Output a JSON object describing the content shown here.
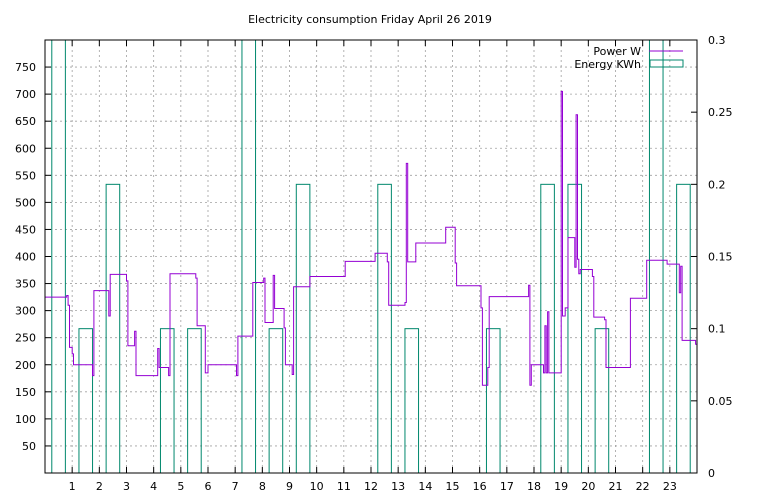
{
  "chart_data": {
    "type": "line",
    "title": "Electricity consumption Friday April 26 2019",
    "grid": true,
    "legend_placement": "top-right",
    "x_axis": {
      "range": [
        0,
        24
      ],
      "ticks": [
        "1",
        "2",
        "3",
        "4",
        "5",
        "6",
        "7",
        "8",
        "9",
        "10",
        "11",
        "12",
        "13",
        "14",
        "15",
        "16",
        "17",
        "18",
        "19",
        "20",
        "21",
        "22",
        "23"
      ]
    },
    "y_axis": {
      "range": [
        0,
        800
      ],
      "ticks": [
        "50",
        "100",
        "150",
        "200",
        "250",
        "300",
        "350",
        "400",
        "450",
        "500",
        "550",
        "600",
        "650",
        "700",
        "750"
      ]
    },
    "y2_axis": {
      "range": [
        0,
        0.3
      ],
      "ticks": [
        "0",
        "0.05",
        "0.1",
        "0.15",
        "0.2",
        "0.25",
        "0.3"
      ]
    },
    "series": [
      {
        "name": "Power W",
        "axis": "y",
        "style": "step-line",
        "color": "#9400d3",
        "points": [
          [
            0,
            325
          ],
          [
            0.8,
            328
          ],
          [
            0.85,
            310
          ],
          [
            0.9,
            232
          ],
          [
            1.0,
            220
          ],
          [
            1.05,
            200
          ],
          [
            1.7,
            200
          ],
          [
            1.75,
            180
          ],
          [
            1.8,
            337
          ],
          [
            2.3,
            337
          ],
          [
            2.35,
            290
          ],
          [
            2.4,
            367
          ],
          [
            2.95,
            367
          ],
          [
            3.0,
            355
          ],
          [
            3.05,
            235
          ],
          [
            3.25,
            235
          ],
          [
            3.3,
            262
          ],
          [
            3.35,
            180
          ],
          [
            4.1,
            180
          ],
          [
            4.15,
            230
          ],
          [
            4.2,
            195
          ],
          [
            4.5,
            195
          ],
          [
            4.55,
            180
          ],
          [
            4.6,
            368
          ],
          [
            5.5,
            368
          ],
          [
            5.55,
            360
          ],
          [
            5.6,
            272
          ],
          [
            5.85,
            272
          ],
          [
            5.9,
            185
          ],
          [
            6.0,
            200
          ],
          [
            7.0,
            200
          ],
          [
            7.05,
            180
          ],
          [
            7.1,
            253
          ],
          [
            7.6,
            253
          ],
          [
            7.65,
            352
          ],
          [
            8.0,
            352
          ],
          [
            8.05,
            360
          ],
          [
            8.1,
            278
          ],
          [
            8.35,
            278
          ],
          [
            8.4,
            365
          ],
          [
            8.45,
            304
          ],
          [
            8.75,
            304
          ],
          [
            8.8,
            268
          ],
          [
            8.85,
            200
          ],
          [
            9.05,
            200
          ],
          [
            9.1,
            182
          ],
          [
            9.15,
            344
          ],
          [
            9.7,
            344
          ],
          [
            9.75,
            363
          ],
          [
            11.0,
            363
          ],
          [
            11.05,
            391
          ],
          [
            12.1,
            391
          ],
          [
            12.15,
            406
          ],
          [
            12.55,
            406
          ],
          [
            12.6,
            390
          ],
          [
            12.65,
            310
          ],
          [
            13.2,
            310
          ],
          [
            13.25,
            315
          ],
          [
            13.3,
            572
          ],
          [
            13.35,
            390
          ],
          [
            13.6,
            390
          ],
          [
            13.65,
            425
          ],
          [
            14.7,
            425
          ],
          [
            14.75,
            454
          ],
          [
            15.05,
            454
          ],
          [
            15.1,
            388
          ],
          [
            15.15,
            346
          ],
          [
            16.0,
            346
          ],
          [
            16.05,
            305
          ],
          [
            16.1,
            162
          ],
          [
            16.25,
            162
          ],
          [
            16.3,
            195
          ],
          [
            16.35,
            326
          ],
          [
            17.75,
            326
          ],
          [
            17.8,
            347
          ],
          [
            17.85,
            162
          ],
          [
            17.9,
            200
          ],
          [
            18.3,
            200
          ],
          [
            18.35,
            185
          ],
          [
            18.4,
            272
          ],
          [
            18.45,
            185
          ],
          [
            18.5,
            298
          ],
          [
            18.55,
            185
          ],
          [
            18.95,
            185
          ],
          [
            19.0,
            705
          ],
          [
            19.05,
            290
          ],
          [
            19.15,
            305
          ],
          [
            19.25,
            435
          ],
          [
            19.45,
            435
          ],
          [
            19.5,
            380
          ],
          [
            19.55,
            662
          ],
          [
            19.6,
            395
          ],
          [
            19.65,
            368
          ],
          [
            19.7,
            376
          ],
          [
            20.1,
            376
          ],
          [
            20.15,
            363
          ],
          [
            20.2,
            288
          ],
          [
            20.55,
            288
          ],
          [
            20.6,
            283
          ],
          [
            20.65,
            195
          ],
          [
            21.5,
            195
          ],
          [
            21.55,
            323
          ],
          [
            22.1,
            323
          ],
          [
            22.15,
            393
          ],
          [
            22.85,
            393
          ],
          [
            22.9,
            386
          ],
          [
            23.3,
            386
          ],
          [
            23.35,
            333
          ],
          [
            23.4,
            382
          ],
          [
            23.45,
            245
          ],
          [
            23.9,
            245
          ],
          [
            23.95,
            238
          ],
          [
            24.0,
            320
          ]
        ]
      },
      {
        "name": "Energy KWh",
        "axis": "y2",
        "style": "boxes",
        "color": "#00876c",
        "bars": [
          [
            0,
            0.3
          ],
          [
            1,
            0.1
          ],
          [
            2,
            0.2
          ],
          [
            3,
            0
          ],
          [
            4,
            0.1
          ],
          [
            5,
            0.1
          ],
          [
            6,
            0
          ],
          [
            7,
            0.3
          ],
          [
            8,
            0.1
          ],
          [
            9,
            0.2
          ],
          [
            10,
            0
          ],
          [
            11,
            0
          ],
          [
            12,
            0.2
          ],
          [
            13,
            0.1
          ],
          [
            14,
            0
          ],
          [
            15,
            0
          ],
          [
            16,
            0.1
          ],
          [
            17,
            0
          ],
          [
            18,
            0.2
          ],
          [
            19,
            0.2
          ],
          [
            20,
            0.1
          ],
          [
            21,
            0
          ],
          [
            22,
            0.3
          ],
          [
            23,
            0.2
          ]
        ]
      }
    ]
  },
  "colors": {
    "power": "#9400d3",
    "energy": "#00876c",
    "grid": "#a0a0a0"
  }
}
